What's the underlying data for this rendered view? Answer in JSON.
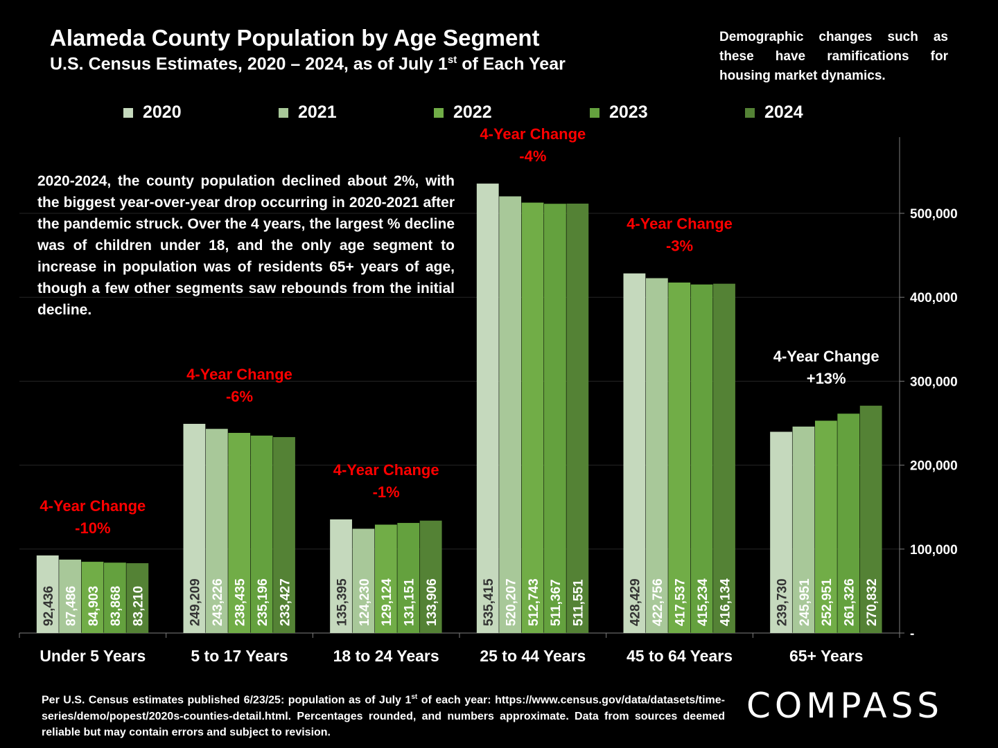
{
  "header": {
    "title": "Alameda County Population by Age Segment",
    "subtitle_main": "U.S. Census Estimates, 2020 – 2024, as of July 1",
    "subtitle_sup": "st",
    "subtitle_end": " of Each Year"
  },
  "sidenote": "Demographic changes such as these have ramifications for housing market dynamics.",
  "annotation": "2020-2024, the county population declined about 2%, with the biggest year-over-year drop occurring in 2020-2021 after the pandemic struck. Over the 4 years, the largest % decline was of children under 18, and the only age segment to increase in population was of residents 65+ years of age, though a few other segments saw rebounds from the initial decline.",
  "footer": {
    "part1": "Per U.S. Census estimates published 6/23/25: population as of July 1",
    "sup": "st",
    "part2": " of each year: https://www.census.gov/data/datasets/time-series/demo/popest/2020s-counties-detail.html. Percentages rounded, and numbers approximate. Data from sources deemed reliable but may contain errors and subject to revision."
  },
  "logo": "COMPASS",
  "chart_data": {
    "type": "bar",
    "categories": [
      "Under 5 Years",
      "5 to 17 Years",
      "18 to 24 Years",
      "25 to 44 Years",
      "45 to 64 Years",
      "65+ Years"
    ],
    "series": [
      {
        "name": "2020",
        "color": "#c5d9bd",
        "label_color": "#333333",
        "values": [
          92436,
          249209,
          135395,
          535415,
          428429,
          239730
        ]
      },
      {
        "name": "2021",
        "color": "#a8c899",
        "label_color": "#ffffff",
        "values": [
          87486,
          243226,
          124230,
          520207,
          422756,
          245951
        ]
      },
      {
        "name": "2022",
        "color": "#71ad47",
        "label_color": "#ffffff",
        "values": [
          84903,
          238435,
          129124,
          512743,
          417537,
          252951
        ]
      },
      {
        "name": "2023",
        "color": "#64a13e",
        "label_color": "#ffffff",
        "values": [
          83868,
          235196,
          131151,
          511367,
          415234,
          261326
        ]
      },
      {
        "name": "2024",
        "color": "#548235",
        "label_color": "#ffffff",
        "values": [
          83210,
          233427,
          133906,
          511551,
          416134,
          270832
        ]
      }
    ],
    "data_labels": [
      [
        "92,436",
        "87,486",
        "84,903",
        "83,868",
        "83,210"
      ],
      [
        "249,209",
        "243,226",
        "238,435",
        "235,196",
        "233,427"
      ],
      [
        "135,395",
        "124,230",
        "129,124",
        "131,151",
        "133,906"
      ],
      [
        "535,415",
        "520,207",
        "512,743",
        "511,367",
        "511,551"
      ],
      [
        "428,429",
        "422,756",
        "417,537",
        "415,234",
        "416,134"
      ],
      [
        "239,730",
        "245,951",
        "252,951",
        "261,326",
        "270,832"
      ]
    ],
    "change_labels": [
      {
        "title": "4-Year Change",
        "value": "-10%",
        "color": "#ff0000"
      },
      {
        "title": "4-Year Change",
        "value": "-6%",
        "color": "#ff0000"
      },
      {
        "title": "4-Year Change",
        "value": "-1%",
        "color": "#ff0000"
      },
      {
        "title": "4-Year Change",
        "value": "-4%",
        "color": "#ff0000"
      },
      {
        "title": "4-Year Change",
        "value": "-3%",
        "color": "#ff0000"
      },
      {
        "title": "4-Year Change",
        "value": "+13%",
        "color": "#ffffff"
      }
    ],
    "y_axis": {
      "position": "right",
      "ticks": [
        0,
        100000,
        200000,
        300000,
        400000,
        500000
      ],
      "tick_labels": [
        "-",
        "100,000",
        "200,000",
        "300,000",
        "400,000",
        "500,000"
      ],
      "ylim": [
        0,
        590000
      ]
    },
    "grid": true,
    "legend": "top"
  }
}
